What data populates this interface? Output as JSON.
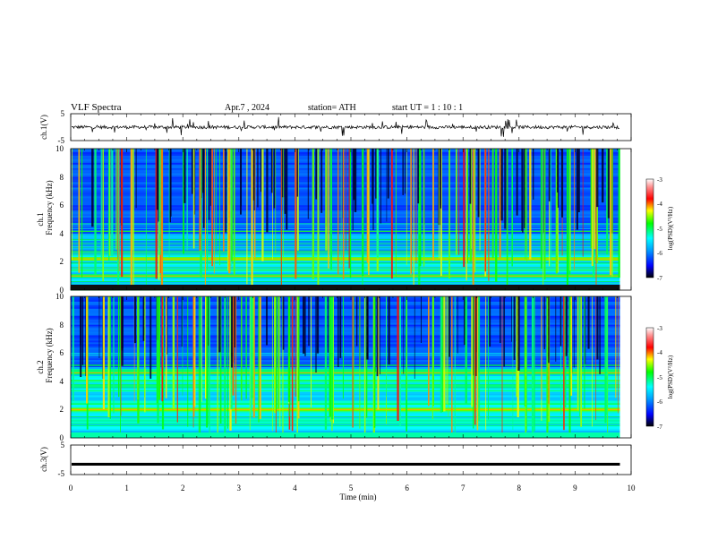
{
  "header": {
    "title": "VLF Spectra",
    "date": "Apr.7 , 2024",
    "station": "station= ATH",
    "start_ut": "start UT =  1 : 10 : 1"
  },
  "chart_data": [
    {
      "type": "line",
      "name": "ch1-waveform",
      "ylabel": "ch.1(V)",
      "ylim": [
        -5,
        5
      ],
      "yticks": [
        "5",
        "-5"
      ],
      "xlim": [
        0,
        10
      ],
      "trace": "noisy waveform with frequent spikes, roughly within ±1 V"
    },
    {
      "type": "heatmap",
      "name": "ch1-spectrogram",
      "ylabel": "ch.1\nFrequency (kHz)",
      "ylim": [
        0,
        10
      ],
      "yticks": [
        "0",
        "2",
        "4",
        "6",
        "8",
        "10"
      ],
      "xlim": [
        0,
        9.8
      ],
      "colorbar": {
        "label": "log(PSD)(V²/Hz)",
        "range": [
          -7,
          -3
        ],
        "ticks": [
          "-3",
          "-4",
          "-5",
          "-6",
          "-7"
        ]
      },
      "bands_khz": [
        2.2,
        1.0
      ]
    },
    {
      "type": "heatmap",
      "name": "ch2-spectrogram",
      "ylabel": "ch.2\nFrequency (kHz)",
      "ylim": [
        0,
        10
      ],
      "yticks": [
        "0",
        "2",
        "4",
        "6",
        "8",
        "10"
      ],
      "xlim": [
        0,
        9.8
      ],
      "colorbar": {
        "label": "log(PSD)(V²/Hz)",
        "range": [
          -7,
          -3
        ],
        "ticks": [
          "-3",
          "-4",
          "-5",
          "-6",
          "-7"
        ]
      },
      "bands_khz": [
        2.0,
        4.6
      ]
    },
    {
      "type": "line",
      "name": "ch3-waveform",
      "ylabel": "ch.3(V)",
      "ylim": [
        -5,
        5
      ],
      "yticks": [
        "5",
        "-5"
      ],
      "xlim": [
        0,
        10
      ],
      "trace_level": -1.5
    }
  ],
  "x_axis": {
    "label": "Time (min)",
    "ticks": [
      "0",
      "1",
      "2",
      "3",
      "4",
      "5",
      "6",
      "7",
      "8",
      "9",
      "10"
    ],
    "range": [
      0,
      10
    ]
  },
  "colors": {
    "colormap": [
      "#000080",
      "#0000ff",
      "#0080ff",
      "#00ffff",
      "#00ff80",
      "#80ff00",
      "#ffff00",
      "#ff8000",
      "#ff0000",
      "#ff8080",
      "#ffffff"
    ]
  }
}
